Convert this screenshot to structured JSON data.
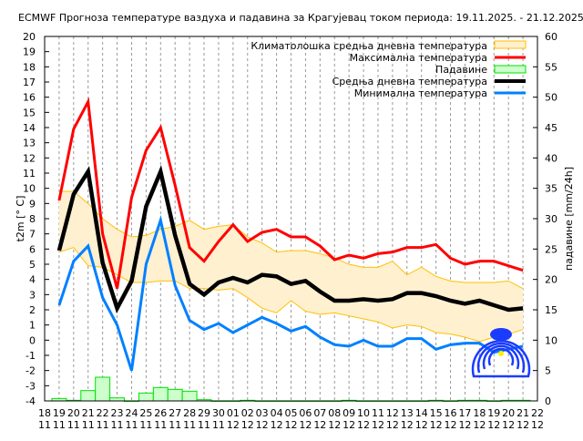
{
  "chart_data": {
    "type": "line",
    "title": "ECMWF Прогноза температуре ваздуха и падавина за Крагујевац током периода: 19.11.2025. - 21.12.2025.",
    "ylabel": "t2m [° C]",
    "y2label": "падавине [mm/24h]",
    "ylim": [
      -4,
      20
    ],
    "y2lim": [
      0,
      60
    ],
    "grid": "vertical dashed",
    "legend_position": "top-right",
    "x_tick_days": [
      "18",
      "19",
      "20",
      "21",
      "22",
      "23",
      "24",
      "25",
      "26",
      "27",
      "28",
      "29",
      "30",
      "01",
      "02",
      "03",
      "04",
      "05",
      "06",
      "07",
      "08",
      "09",
      "10",
      "11",
      "12",
      "13",
      "14",
      "15",
      "16",
      "17",
      "18",
      "19",
      "20",
      "21",
      "22"
    ],
    "x_tick_months": [
      "11",
      "11",
      "11",
      "11",
      "11",
      "11",
      "11",
      "11",
      "11",
      "11",
      "11",
      "11",
      "11",
      "12",
      "12",
      "12",
      "12",
      "12",
      "12",
      "12",
      "12",
      "12",
      "12",
      "12",
      "12",
      "12",
      "12",
      "12",
      "12",
      "12",
      "12",
      "12",
      "12",
      "12",
      "12"
    ],
    "x": [
      "19.11",
      "20.11",
      "21.11",
      "22.11",
      "23.11",
      "24.11",
      "25.11",
      "26.11",
      "27.11",
      "28.11",
      "29.11",
      "30.11",
      "01.12",
      "02.12",
      "03.12",
      "04.12",
      "05.12",
      "06.12",
      "07.12",
      "08.12",
      "09.12",
      "10.12",
      "11.12",
      "12.12",
      "13.12",
      "14.12",
      "15.12",
      "16.12",
      "17.12",
      "18.12",
      "19.12",
      "20.12",
      "21.12"
    ],
    "climate_band": {
      "name": "Климатолошка средња дневна температура",
      "upper": [
        9.8,
        9.8,
        9.0,
        8.0,
        7.3,
        6.8,
        6.9,
        7.3,
        7.5,
        7.9,
        7.3,
        7.5,
        7.6,
        6.8,
        6.4,
        5.8,
        5.9,
        5.9,
        5.7,
        5.4,
        5.0,
        4.8,
        4.8,
        5.2,
        4.3,
        4.8,
        4.2,
        3.9,
        3.8,
        3.8,
        3.8,
        3.9,
        3.4
      ],
      "lower": [
        5.8,
        6.1,
        4.9,
        4.8,
        4.3,
        3.8,
        3.8,
        3.9,
        3.9,
        3.4,
        3.4,
        3.3,
        3.4,
        2.8,
        2.1,
        1.8,
        2.6,
        1.9,
        1.7,
        1.8,
        1.6,
        1.4,
        1.2,
        0.8,
        1.0,
        0.9,
        0.5,
        0.4,
        0.2,
        -0.1,
        0.2,
        0.4,
        0.7
      ],
      "color": "#ffc000"
    },
    "series": [
      {
        "name": "Максимална температура",
        "color": "#ff0000",
        "values": [
          9.2,
          13.9,
          15.7,
          7.0,
          3.4,
          9.4,
          12.5,
          14.0,
          10.2,
          6.1,
          5.2,
          6.5,
          7.6,
          6.5,
          7.1,
          7.3,
          6.8,
          6.8,
          6.2,
          5.3,
          5.6,
          5.4,
          5.7,
          5.8,
          6.1,
          6.1,
          6.3,
          5.4,
          5.0,
          5.2,
          5.2,
          4.9,
          4.6
        ]
      },
      {
        "name": "Средња дневна температура",
        "color": "#000000",
        "values": [
          5.9,
          9.6,
          11.1,
          5.1,
          2.1,
          3.9,
          8.8,
          11.1,
          6.9,
          3.7,
          3.0,
          3.8,
          4.1,
          3.8,
          4.3,
          4.2,
          3.7,
          3.9,
          3.2,
          2.6,
          2.6,
          2.7,
          2.6,
          2.7,
          3.1,
          3.1,
          2.9,
          2.6,
          2.4,
          2.6,
          2.3,
          2.0,
          2.1
        ]
      },
      {
        "name": "Минимална температура",
        "color": "#0080ff",
        "values": [
          2.3,
          5.2,
          6.2,
          2.8,
          1.0,
          -2.0,
          5.0,
          7.9,
          3.6,
          1.3,
          0.7,
          1.1,
          0.5,
          1.0,
          1.5,
          1.1,
          0.6,
          0.9,
          0.2,
          -0.3,
          -0.4,
          0.0,
          -0.4,
          -0.4,
          0.1,
          0.1,
          -0.6,
          -0.3,
          -0.2,
          -0.2,
          -0.8,
          -0.6,
          -0.4
        ]
      }
    ],
    "precipitation": {
      "name": "Падавине",
      "color": "#00e000",
      "values": [
        0.4,
        0.1,
        1.7,
        3.9,
        0.5,
        0.0,
        1.3,
        2.2,
        1.9,
        1.6,
        0.2,
        0.0,
        0.0,
        0.1,
        0.0,
        0.0,
        0.0,
        0.0,
        0.0,
        0.0,
        0.1,
        0.0,
        0.0,
        0.0,
        0.0,
        0.0,
        0.1,
        0.0,
        0.1,
        0.1,
        0.0,
        0.1,
        0.1
      ]
    }
  }
}
